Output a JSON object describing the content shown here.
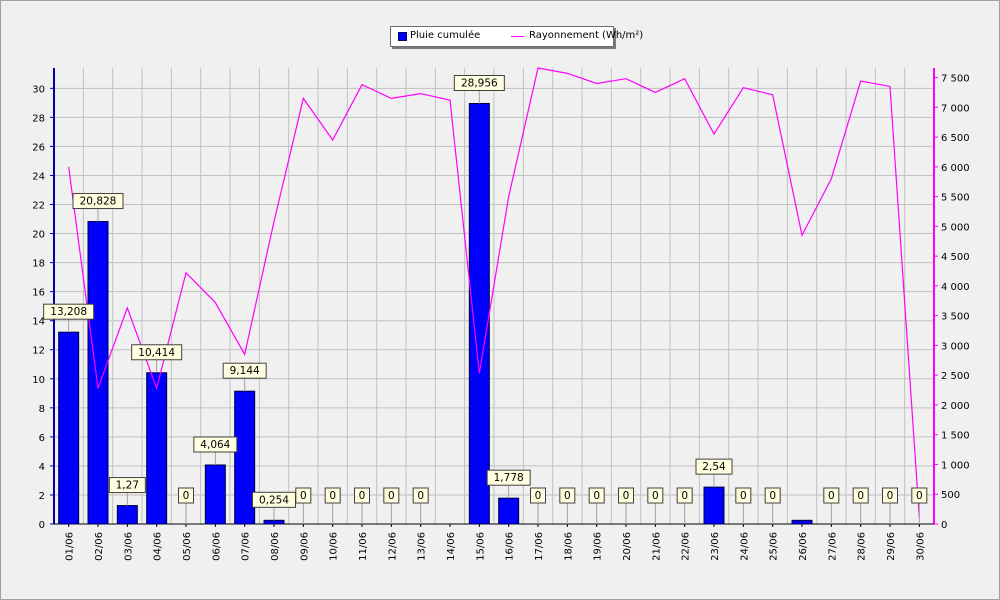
{
  "chart_data": {
    "type": "bar",
    "categories": [
      "01/06",
      "02/06",
      "03/06",
      "04/06",
      "05/06",
      "06/06",
      "07/06",
      "08/06",
      "09/06",
      "10/06",
      "11/06",
      "12/06",
      "13/06",
      "14/06",
      "15/06",
      "16/06",
      "17/06",
      "18/06",
      "19/06",
      "20/06",
      "21/06",
      "22/06",
      "23/06",
      "24/06",
      "25/06",
      "26/06",
      "27/06",
      "28/06",
      "29/06",
      "30/06"
    ],
    "series": [
      {
        "name": "Pluie cumulée",
        "kind": "bar",
        "axis": "left",
        "color": "#0000ff",
        "values": [
          13.208,
          20.828,
          1.27,
          10.414,
          0,
          4.064,
          9.144,
          0.254,
          0,
          0,
          0,
          0,
          0,
          0,
          28.956,
          1.778,
          0,
          0,
          0,
          0,
          0,
          0,
          2.54,
          0,
          0,
          0.254,
          0,
          0,
          0,
          0
        ],
        "labels": [
          "13,208",
          "20,828",
          "1,27",
          "10,414",
          "0",
          "4,064",
          "9,144",
          "0,254",
          "0",
          "0",
          "0",
          "0",
          "0",
          "",
          "28,956",
          "1,778",
          "0",
          "0",
          "0",
          "0",
          "0",
          "0",
          "2,54",
          "0",
          "0",
          "",
          "0",
          "0",
          "0",
          "0"
        ]
      },
      {
        "name": "Rayonnement (Wh/m²)",
        "kind": "line",
        "axis": "right",
        "color": "#ff00ff",
        "values": [
          6000,
          2280,
          3630,
          2280,
          4220,
          3720,
          2850,
          5080,
          7150,
          6450,
          7380,
          7150,
          7230,
          7120,
          2530,
          5500,
          7660,
          7570,
          7400,
          7480,
          7250,
          7480,
          6550,
          7330,
          7210,
          4850,
          5800,
          7440,
          7350,
          100
        ]
      }
    ],
    "left_axis": {
      "ylim": [
        0,
        31.4
      ],
      "ticks": [
        "0",
        "2",
        "4",
        "6",
        "8",
        "10",
        "12",
        "14",
        "16",
        "18",
        "20",
        "22",
        "24",
        "26",
        "28",
        "30"
      ]
    },
    "right_axis": {
      "ylim": [
        0,
        7660
      ],
      "ticks": [
        "0",
        "500",
        "1 000",
        "1 500",
        "2 000",
        "2 500",
        "3 000",
        "3 500",
        "4 000",
        "4 500",
        "5 000",
        "5 500",
        "6 000",
        "6 500",
        "7 000",
        "7 500"
      ]
    },
    "grid": true,
    "legend_position": "top-center"
  }
}
